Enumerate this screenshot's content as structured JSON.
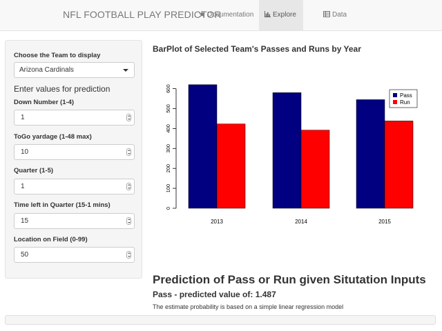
{
  "navbar": {
    "brand": "NFL FOOTBALL PLAY PREDICTOR",
    "tabs": [
      {
        "label": "Documentation",
        "icon": "star-icon"
      },
      {
        "label": "Explore",
        "icon": "bar-chart-icon"
      },
      {
        "label": "Data",
        "icon": "table-icon"
      }
    ]
  },
  "sidebar": {
    "team_label": "Choose the Team to display",
    "team_value": "Arizona Cardinals",
    "section_title": "Enter values for prediction",
    "fields": [
      {
        "label": "Down Number (1-4)",
        "value": "1"
      },
      {
        "label": "ToGo yardage (1-48 max)",
        "value": "10"
      },
      {
        "label": "Quarter (1-5)",
        "value": "1"
      },
      {
        "label": "Time left in Quarter (15-1 mins)",
        "value": "15"
      },
      {
        "label": "Location on Field (0-99)",
        "value": "50"
      }
    ]
  },
  "chart_title": "BarPlot of Selected Team's Passes and Runs by Year",
  "chart_data": {
    "type": "bar",
    "title": "BarPlot of Selected Team's Passes and Runs by Year",
    "categories": [
      "2013",
      "2014",
      "2015"
    ],
    "series": [
      {
        "name": "Pass",
        "values": [
          620,
          580,
          545
        ],
        "color": "#000080"
      },
      {
        "name": "Run",
        "values": [
          423,
          392,
          438
        ],
        "color": "#ff0000"
      }
    ],
    "yticks": [
      "0",
      "100",
      "200",
      "300",
      "400",
      "500",
      "600"
    ],
    "ylim": [
      0,
      620
    ],
    "legend": "top-right"
  },
  "prediction": {
    "title": "Prediction of Pass or Run given Situtation Inputs",
    "value_text": "Pass - predicted value of: 1.487",
    "note": "The estimate probability is based on a simple linear regression model"
  }
}
